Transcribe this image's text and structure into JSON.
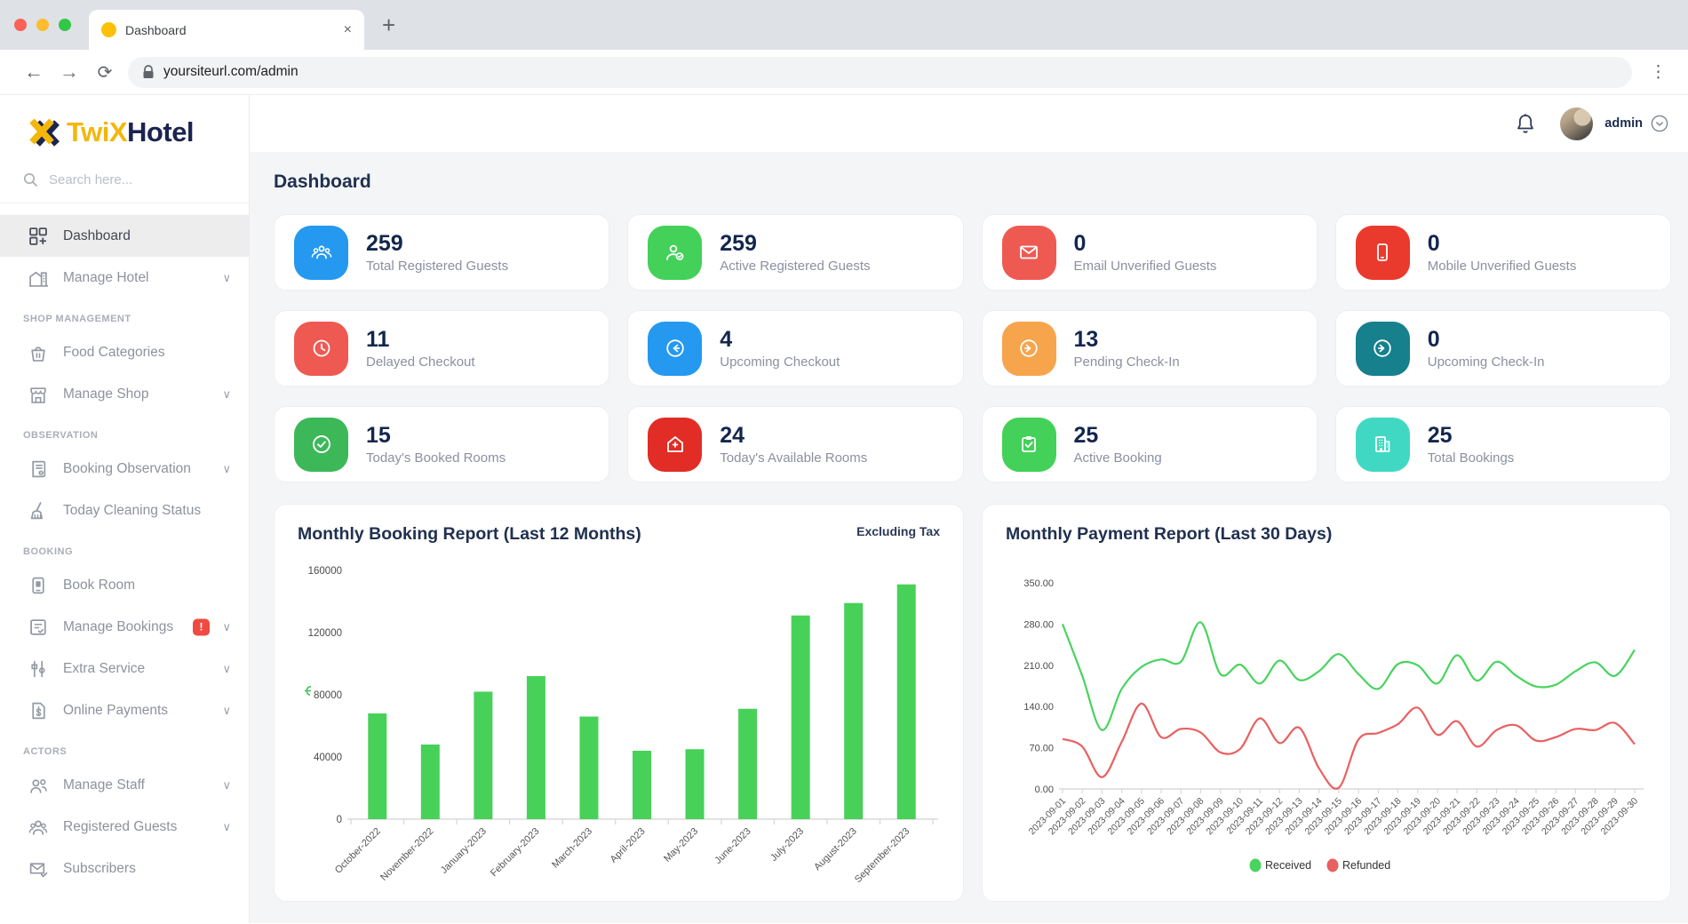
{
  "browser": {
    "tab_title": "Dashboard",
    "url": "yoursiteurl.com/admin",
    "new_tab_label": "+",
    "close_label": "×",
    "back_label": "←",
    "forward_label": "→",
    "reload_label": "⟳",
    "menu_label": "⋮",
    "traffic_colors": [
      "#f96256",
      "#fdbc2e",
      "#33c748"
    ]
  },
  "brand": {
    "name_part1": "TwiX",
    "name_part2": "Hotel"
  },
  "sidebar": {
    "search_placeholder": "Search here...",
    "sections": [
      {
        "header": "",
        "items": [
          {
            "icon": "dashboard",
            "label": "Dashboard",
            "active": true
          },
          {
            "icon": "hotel",
            "label": "Manage Hotel",
            "chevron": true
          }
        ]
      },
      {
        "header": "SHOP MANAGEMENT",
        "items": [
          {
            "icon": "food",
            "label": "Food Categories"
          },
          {
            "icon": "shop",
            "label": "Manage Shop",
            "chevron": true
          }
        ]
      },
      {
        "header": "OBSERVATION",
        "items": [
          {
            "icon": "observation",
            "label": "Booking Observation",
            "chevron": true
          },
          {
            "icon": "cleaning",
            "label": "Today Cleaning Status"
          }
        ]
      },
      {
        "header": "BOOKING",
        "items": [
          {
            "icon": "book-room",
            "label": "Book Room"
          },
          {
            "icon": "manage-bookings",
            "label": "Manage Bookings",
            "badge": "!",
            "chevron": true
          },
          {
            "icon": "extra-service",
            "label": "Extra Service",
            "chevron": true
          },
          {
            "icon": "online-payments",
            "label": "Online Payments",
            "chevron": true
          }
        ]
      },
      {
        "header": "ACTORS",
        "items": [
          {
            "icon": "staff",
            "label": "Manage Staff",
            "chevron": true
          },
          {
            "icon": "guests",
            "label": "Registered Guests",
            "chevron": true
          },
          {
            "icon": "subscribers",
            "label": "Subscribers"
          }
        ]
      }
    ]
  },
  "topbar": {
    "user": "admin"
  },
  "page": {
    "title": "Dashboard"
  },
  "stats": [
    {
      "value": "259",
      "label": "Total Registered Guests",
      "icon": "users",
      "color": "#2499ef"
    },
    {
      "value": "259",
      "label": "Active Registered Guests",
      "icon": "user-check",
      "color": "#43d159"
    },
    {
      "value": "0",
      "label": "Email Unverified Guests",
      "icon": "envelope",
      "color": "#ee5a52"
    },
    {
      "value": "0",
      "label": "Mobile Unverified Guests",
      "icon": "mobile",
      "color": "#ea3a2d"
    },
    {
      "value": "11",
      "label": "Delayed Checkout",
      "icon": "clock",
      "color": "#ee5a52"
    },
    {
      "value": "4",
      "label": "Upcoming Checkout",
      "icon": "arrow-left-circle",
      "color": "#2499ef"
    },
    {
      "value": "13",
      "label": "Pending Check-In",
      "icon": "arrow-right-circle",
      "color": "#f6a54c"
    },
    {
      "value": "0",
      "label": "Upcoming Check-In",
      "icon": "arrow-right-circle",
      "color": "#17808d"
    },
    {
      "value": "15",
      "label": "Today's Booked Rooms",
      "icon": "check-circle",
      "color": "#3cb859"
    },
    {
      "value": "24",
      "label": "Today's Available Rooms",
      "icon": "house-plus",
      "color": "#e12d25"
    },
    {
      "value": "25",
      "label": "Active Booking",
      "icon": "clipboard-check",
      "color": "#43d159"
    },
    {
      "value": "25",
      "label": "Total Bookings",
      "icon": "building",
      "color": "#41d8c3"
    }
  ],
  "chart_data": [
    {
      "type": "bar",
      "title": "Monthly Booking Report (Last 12 Months)",
      "note": "Excluding Tax",
      "categories": [
        "October-2022",
        "November-2022",
        "January-2023",
        "February-2023",
        "March-2023",
        "April-2023",
        "May-2023",
        "June-2023",
        "July-2023",
        "August-2023",
        "September-2023"
      ],
      "values": [
        68000,
        48000,
        82000,
        92000,
        66000,
        44000,
        45000,
        71000,
        131000,
        139000,
        151000
      ],
      "ylim": [
        0,
        160000
      ],
      "ytick_step": 40000,
      "bar_color": "#47d158",
      "y_axis_symbol": "manat-currency",
      "grid": false,
      "legend": "none"
    },
    {
      "type": "line",
      "title": "Monthly Payment Report (Last 30 Days)",
      "x": [
        "2023-09-01",
        "2023-09-02",
        "2023-09-03",
        "2023-09-04",
        "2023-09-05",
        "2023-09-06",
        "2023-09-07",
        "2023-09-08",
        "2023-09-09",
        "2023-09-10",
        "2023-09-11",
        "2023-09-12",
        "2023-09-13",
        "2023-09-14",
        "2023-09-15",
        "2023-09-16",
        "2023-09-17",
        "2023-09-18",
        "2023-09-19",
        "2023-09-20",
        "2023-09-21",
        "2023-09-22",
        "2023-09-23",
        "2023-09-24",
        "2023-09-25",
        "2023-09-26",
        "2023-09-27",
        "2023-09-28",
        "2023-09-29",
        "2023-09-30"
      ],
      "series": [
        {
          "name": "Received",
          "color": "#49d35f",
          "values": [
            280,
            192,
            100,
            170,
            207,
            220,
            216,
            283,
            195,
            211,
            179,
            218,
            185,
            200,
            229,
            195,
            170,
            212,
            210,
            179,
            227,
            184,
            216,
            192,
            174,
            177,
            200,
            215,
            192,
            236
          ]
        },
        {
          "name": "Refunded",
          "color": "#e96060",
          "values": [
            85,
            72,
            20,
            80,
            145,
            88,
            102,
            96,
            62,
            68,
            120,
            78,
            104,
            35,
            2,
            84,
            95,
            110,
            138,
            92,
            115,
            72,
            100,
            108,
            82,
            88,
            102,
            100,
            112,
            76
          ]
        }
      ],
      "ylim": [
        0,
        350
      ],
      "ytick_step": 70,
      "ytick_format": "0.00",
      "grid": false,
      "legend": "bottom"
    }
  ]
}
